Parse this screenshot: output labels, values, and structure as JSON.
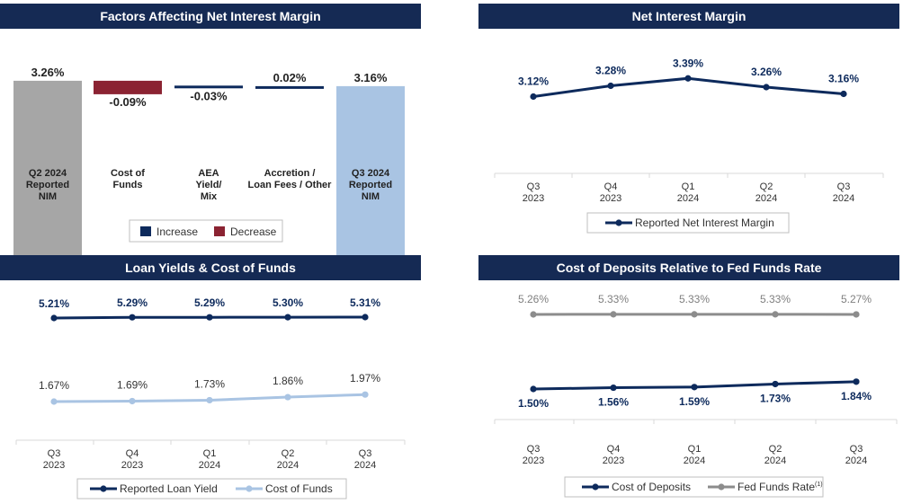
{
  "colors": {
    "header_bg": "#152a54",
    "navy": "#0d2a5c",
    "light_blue": "#a9c4e3",
    "gray": "#8c8c8c",
    "bar_gray": "#a6a6a6",
    "decrease_red": "#8b2332"
  },
  "panels": {
    "factors": {
      "title": "Factors Affecting Net Interest Margin"
    },
    "nim": {
      "title": "Net Interest Margin"
    },
    "loan": {
      "title": "Loan Yields & Cost of Funds"
    },
    "deposits": {
      "title": "Cost of Deposits Relative to Fed Funds Rate"
    }
  },
  "chart_data": [
    {
      "id": "factors",
      "type": "bar",
      "title": "Factors Affecting Net Interest Margin",
      "categories": [
        "Q2 2024\nReported\nNIM",
        "Cost of\nFunds",
        "AEA\nYield/\nMix",
        "Accretion /\nLoan Fees / Other",
        "Q3 2024\nReported\nNIM"
      ],
      "values": [
        3.26,
        -0.09,
        -0.03,
        0.02,
        3.16
      ],
      "labels": [
        "3.26%",
        "-0.09%",
        "-0.03%",
        "0.02%",
        "3.16%"
      ],
      "legend": [
        {
          "name": "Increase",
          "color": "#0d2a5c"
        },
        {
          "name": "Decrease",
          "color": "#8b2332"
        }
      ],
      "legend_position": "bottom"
    },
    {
      "id": "nim",
      "type": "line",
      "title": "Net Interest Margin",
      "categories": [
        "Q3\n2023",
        "Q4\n2023",
        "Q1\n2024",
        "Q2\n2024",
        "Q3\n2024"
      ],
      "series": [
        {
          "name": "Reported Net Interest Margin",
          "values": [
            3.12,
            3.28,
            3.39,
            3.26,
            3.16
          ],
          "labels": [
            "3.12%",
            "3.28%",
            "3.39%",
            "3.26%",
            "3.16%"
          ],
          "color": "#0d2a5c"
        }
      ],
      "legend_position": "bottom"
    },
    {
      "id": "loan",
      "type": "line",
      "title": "Loan Yields & Cost of Funds",
      "categories": [
        "Q3\n2023",
        "Q4\n2023",
        "Q1\n2024",
        "Q2\n2024",
        "Q3\n2024"
      ],
      "series": [
        {
          "name": "Reported Loan Yield",
          "values": [
            5.21,
            5.29,
            5.29,
            5.3,
            5.31
          ],
          "labels": [
            "5.21%",
            "5.29%",
            "5.29%",
            "5.30%",
            "5.31%"
          ],
          "color": "#0d2a5c"
        },
        {
          "name": "Cost of Funds",
          "values": [
            1.67,
            1.69,
            1.73,
            1.86,
            1.97
          ],
          "labels": [
            "1.67%",
            "1.69%",
            "1.73%",
            "1.86%",
            "1.97%"
          ],
          "color": "#a9c4e3"
        }
      ],
      "legend_position": "bottom"
    },
    {
      "id": "deposits",
      "type": "line",
      "title": "Cost of Deposits Relative to Fed Funds Rate",
      "categories": [
        "Q3\n2023",
        "Q4\n2023",
        "Q1\n2024",
        "Q2\n2024",
        "Q3\n2024"
      ],
      "series": [
        {
          "name": "Cost of Deposits",
          "values": [
            1.5,
            1.56,
            1.59,
            1.73,
            1.84
          ],
          "labels": [
            "1.50%",
            "1.56%",
            "1.59%",
            "1.73%",
            "1.84%"
          ],
          "color": "#0d2a5c"
        },
        {
          "name": "Fed Funds Rate",
          "superscript": "(1)",
          "values": [
            5.26,
            5.33,
            5.33,
            5.33,
            5.27
          ],
          "labels": [
            "5.26%",
            "5.33%",
            "5.33%",
            "5.33%",
            "5.27%"
          ],
          "color": "#8c8c8c"
        }
      ],
      "legend_position": "bottom"
    }
  ]
}
